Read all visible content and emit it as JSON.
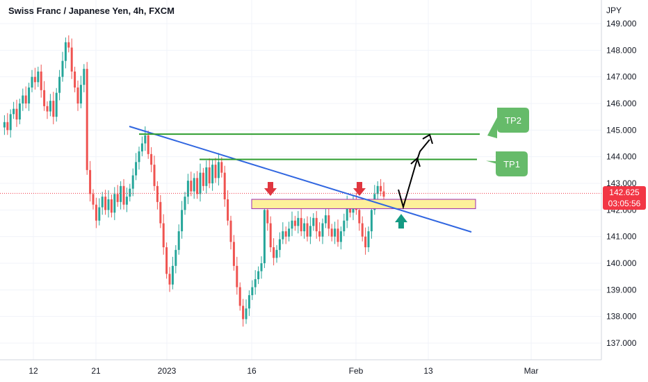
{
  "header": {
    "title": "Swiss Franc / Japanese Yen, 4h, FXCM"
  },
  "colors": {
    "up": "#26a69a",
    "down": "#ef5350",
    "trendline": "#3066e0",
    "tp_line": "#2e9d2e",
    "zone_fill": "#fdf09a",
    "zone_border": "#9c27b0",
    "current_price": "#f23645",
    "callout": "#66bb6a",
    "arrow_down": "#e0363f",
    "arrow_up": "#149a83"
  },
  "chart_data": {
    "type": "candlestick",
    "title": "Swiss Franc / Japanese Yen, 4h, FXCM",
    "currency": "JPY",
    "y_range": [
      136.6,
      149.4
    ],
    "y_ticks": [
      137,
      138,
      139,
      140,
      141,
      142,
      143,
      144,
      145,
      146,
      147,
      148,
      149
    ],
    "y_tick_labels": [
      "137.000",
      "138.000",
      "139.000",
      "140.000",
      "141.000",
      "142.000",
      "143.000",
      "144.000",
      "145.000",
      "146.000",
      "147.000",
      "148.000",
      "149.000"
    ],
    "x_labels": [
      {
        "label": "12",
        "i": 0
      },
      {
        "label": "21",
        "i": 1
      },
      {
        "label": "2023",
        "i": 2
      },
      {
        "label": "16",
        "i": 3
      },
      {
        "label": "Feb",
        "i": 4
      },
      {
        "label": "13",
        "i": 5
      },
      {
        "label": "Mar",
        "i": 6
      }
    ],
    "current_price": "142.625",
    "current_price_value": 142.625,
    "countdown": "03:05:56",
    "close_path": [
      [
        0,
        145.1
      ],
      [
        1,
        145.3
      ],
      [
        2,
        145.0
      ],
      [
        3,
        145.6
      ],
      [
        4,
        145.8
      ],
      [
        5,
        145.4
      ],
      [
        6,
        146.0
      ],
      [
        7,
        146.3
      ],
      [
        8,
        146.0
      ],
      [
        9,
        146.6
      ],
      [
        10,
        147.0
      ],
      [
        11,
        146.8
      ],
      [
        12,
        147.2
      ],
      [
        13,
        146.5
      ],
      [
        14,
        145.9
      ],
      [
        15,
        145.7
      ],
      [
        16,
        146.1
      ],
      [
        17,
        145.5
      ],
      [
        18,
        146.4
      ],
      [
        19,
        147.0
      ],
      [
        20,
        147.6
      ],
      [
        21,
        148.3
      ],
      [
        22,
        148.1
      ],
      [
        23,
        147.2
      ],
      [
        24,
        146.6
      ],
      [
        25,
        146.0
      ],
      [
        26,
        146.7
      ],
      [
        27,
        147.3
      ],
      [
        28,
        143.5
      ],
      [
        29,
        142.6
      ],
      [
        30,
        142.2
      ],
      [
        31,
        141.6
      ],
      [
        32,
        142.1
      ],
      [
        33,
        142.5
      ],
      [
        34,
        142.0
      ],
      [
        35,
        142.4
      ],
      [
        36,
        141.9
      ],
      [
        37,
        142.6
      ],
      [
        38,
        142.3
      ],
      [
        39,
        142.9
      ],
      [
        40,
        142.2
      ],
      [
        41,
        142.5
      ],
      [
        42,
        142.8
      ],
      [
        43,
        143.3
      ],
      [
        44,
        143.8
      ],
      [
        45,
        144.2
      ],
      [
        46,
        144.5
      ],
      [
        47,
        144.8
      ],
      [
        48,
        144.1
      ],
      [
        49,
        143.7
      ],
      [
        50,
        142.9
      ],
      [
        51,
        142.3
      ],
      [
        52,
        141.5
      ],
      [
        53,
        140.6
      ],
      [
        54,
        139.6
      ],
      [
        55,
        139.2
      ],
      [
        56,
        139.9
      ],
      [
        57,
        140.5
      ],
      [
        58,
        141.2
      ],
      [
        59,
        142.0
      ],
      [
        60,
        142.5
      ],
      [
        61,
        143.1
      ],
      [
        62,
        142.7
      ],
      [
        63,
        143.2
      ],
      [
        64,
        142.6
      ],
      [
        65,
        143.4
      ],
      [
        66,
        142.9
      ],
      [
        67,
        143.6
      ],
      [
        68,
        143.0
      ],
      [
        69,
        143.7
      ],
      [
        70,
        143.2
      ],
      [
        71,
        143.8
      ],
      [
        72,
        143.4
      ],
      [
        73,
        142.4
      ],
      [
        74,
        141.6
      ],
      [
        75,
        140.8
      ],
      [
        76,
        139.9
      ],
      [
        77,
        139.1
      ],
      [
        78,
        138.4
      ],
      [
        79,
        137.9
      ],
      [
        80,
        138.3
      ],
      [
        81,
        138.8
      ],
      [
        82,
        139.1
      ],
      [
        83,
        139.4
      ],
      [
        84,
        139.7
      ],
      [
        85,
        140.0
      ],
      [
        86,
        142.0
      ],
      [
        87,
        141.5
      ],
      [
        88,
        140.6
      ],
      [
        89,
        140.2
      ],
      [
        90,
        140.5
      ],
      [
        91,
        140.9
      ],
      [
        92,
        141.2
      ],
      [
        93,
        141.0
      ],
      [
        94,
        141.3
      ],
      [
        95,
        141.6
      ],
      [
        96,
        141.4
      ],
      [
        97,
        141.7
      ],
      [
        98,
        141.2
      ],
      [
        99,
        141.5
      ],
      [
        100,
        141.0
      ],
      [
        101,
        141.4
      ],
      [
        102,
        141.7
      ],
      [
        103,
        141.2
      ],
      [
        104,
        141.0
      ],
      [
        105,
        141.5
      ],
      [
        106,
        141.8
      ],
      [
        107,
        141.3
      ],
      [
        108,
        141.0
      ],
      [
        109,
        141.3
      ],
      [
        110,
        140.8
      ],
      [
        111,
        141.2
      ],
      [
        112,
        141.6
      ],
      [
        113,
        142.2
      ],
      [
        114,
        141.9
      ],
      [
        115,
        142.3
      ],
      [
        116,
        142.0
      ],
      [
        117,
        141.5
      ],
      [
        118,
        141.0
      ],
      [
        119,
        140.6
      ],
      [
        120,
        141.2
      ],
      [
        121,
        142.0
      ],
      [
        122,
        142.6
      ],
      [
        123,
        142.9
      ],
      [
        124,
        142.7
      ],
      [
        125,
        142.5
      ]
    ],
    "annotations": {
      "trendline": {
        "x1": 47,
        "y1": 145.05,
        "x2": 171,
        "y2": 141.15
      },
      "tp1": {
        "label": "TP1",
        "price": 143.9
      },
      "tp2": {
        "label": "TP2",
        "price": 144.85
      },
      "support_zone": {
        "top": 142.4,
        "bottom": 142.05
      },
      "down_arrows": [
        98,
        130
      ],
      "up_arrow": 145
    }
  }
}
